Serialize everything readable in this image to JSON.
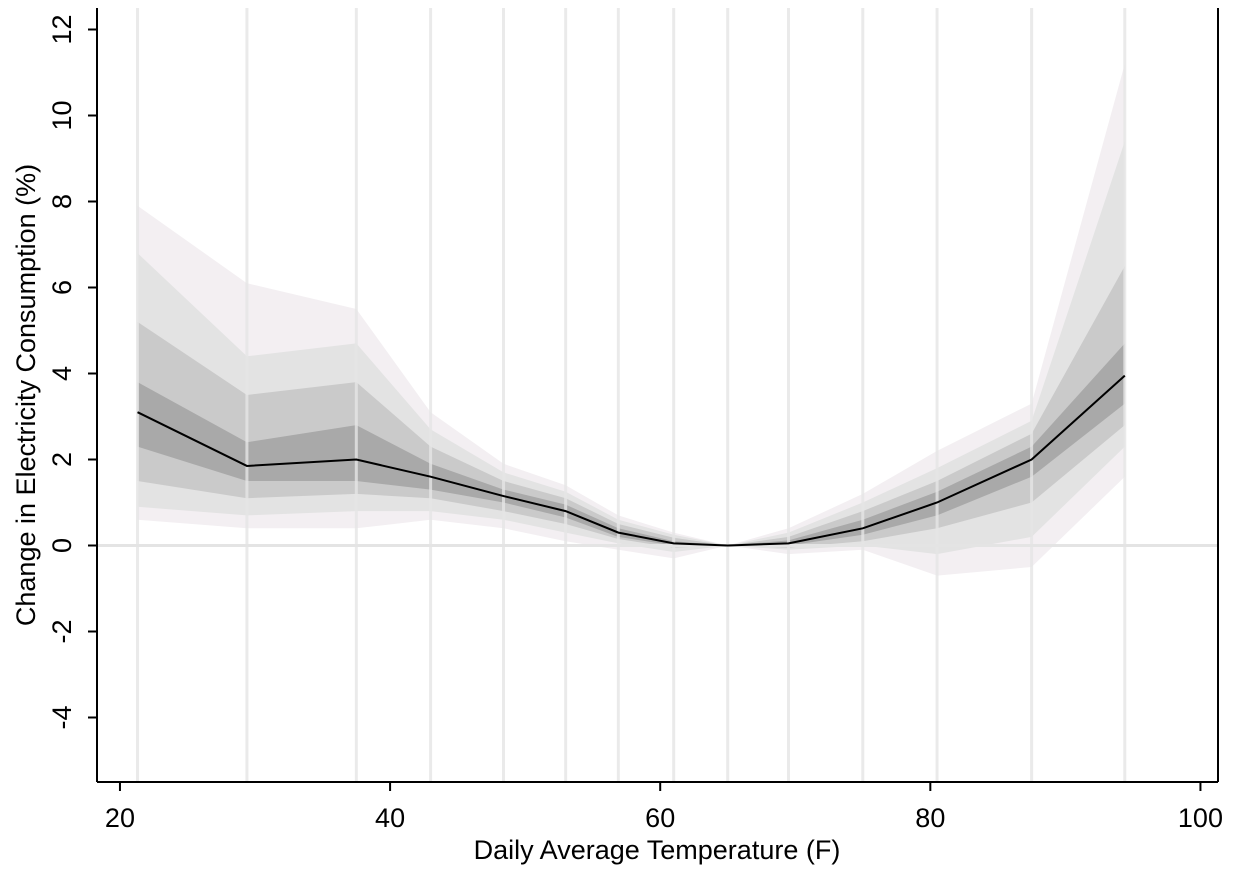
{
  "chart_data": {
    "type": "fan",
    "x_label": "Daily Average Temperature (F)",
    "y_label": "Change in  Electricity Consumption (%)",
    "x": [
      21.3,
      29.4,
      37.5,
      43,
      48.4,
      53,
      56.9,
      61,
      65,
      69.5,
      75,
      80.5,
      87.5,
      94.4
    ],
    "series": [
      {
        "color": "#000000",
        "values": [
          3.1,
          1.85,
          2.0,
          1.6,
          1.15,
          0.8,
          0.3,
          0.05,
          0,
          0.05,
          0.4,
          1.0,
          2.0,
          3.95
        ]
      }
    ],
    "bands": [
      {
        "color": "#f3eff2",
        "upper": [
          7.9,
          6.1,
          5.5,
          3.1,
          1.9,
          1.4,
          0.7,
          0.3,
          0,
          0.4,
          1.2,
          2.2,
          3.3,
          11.2
        ],
        "lower": [
          0.6,
          0.4,
          0.4,
          0.6,
          0.4,
          0.1,
          -0.1,
          -0.3,
          0,
          -0.2,
          -0.1,
          -0.7,
          -0.5,
          1.6
        ]
      },
      {
        "color": "#e3e3e3",
        "upper": [
          6.8,
          4.4,
          4.7,
          2.7,
          1.7,
          1.25,
          0.6,
          0.25,
          0,
          0.3,
          1.0,
          1.8,
          2.9,
          9.4
        ],
        "lower": [
          0.9,
          0.7,
          0.8,
          0.8,
          0.6,
          0.3,
          0.05,
          -0.15,
          0,
          -0.1,
          0.0,
          -0.2,
          0.2,
          2.3
        ]
      },
      {
        "color": "#cacaca",
        "upper": [
          5.2,
          3.5,
          3.8,
          2.3,
          1.5,
          1.1,
          0.5,
          0.18,
          0,
          0.2,
          0.8,
          1.5,
          2.6,
          6.5
        ],
        "lower": [
          1.5,
          1.1,
          1.2,
          1.1,
          0.8,
          0.5,
          0.15,
          -0.05,
          0,
          -0.05,
          0.1,
          0.4,
          1.0,
          2.8
        ]
      },
      {
        "color": "#a9a9a9",
        "upper": [
          3.8,
          2.4,
          2.8,
          1.9,
          1.3,
          0.95,
          0.4,
          0.1,
          0,
          0.12,
          0.6,
          1.25,
          2.3,
          4.7
        ],
        "lower": [
          2.3,
          1.5,
          1.5,
          1.3,
          1.0,
          0.65,
          0.2,
          0.0,
          0,
          0.0,
          0.25,
          0.7,
          1.6,
          3.3
        ]
      }
    ],
    "reference_line": 0,
    "xlim": [
      18.3,
      101.3
    ],
    "xticks": [
      20,
      40,
      60,
      80,
      100
    ],
    "ylim": [
      -5.5,
      12.5
    ],
    "yticks": [
      -4,
      -2,
      0,
      2,
      4,
      6,
      8,
      10,
      12
    ],
    "grid": true
  }
}
